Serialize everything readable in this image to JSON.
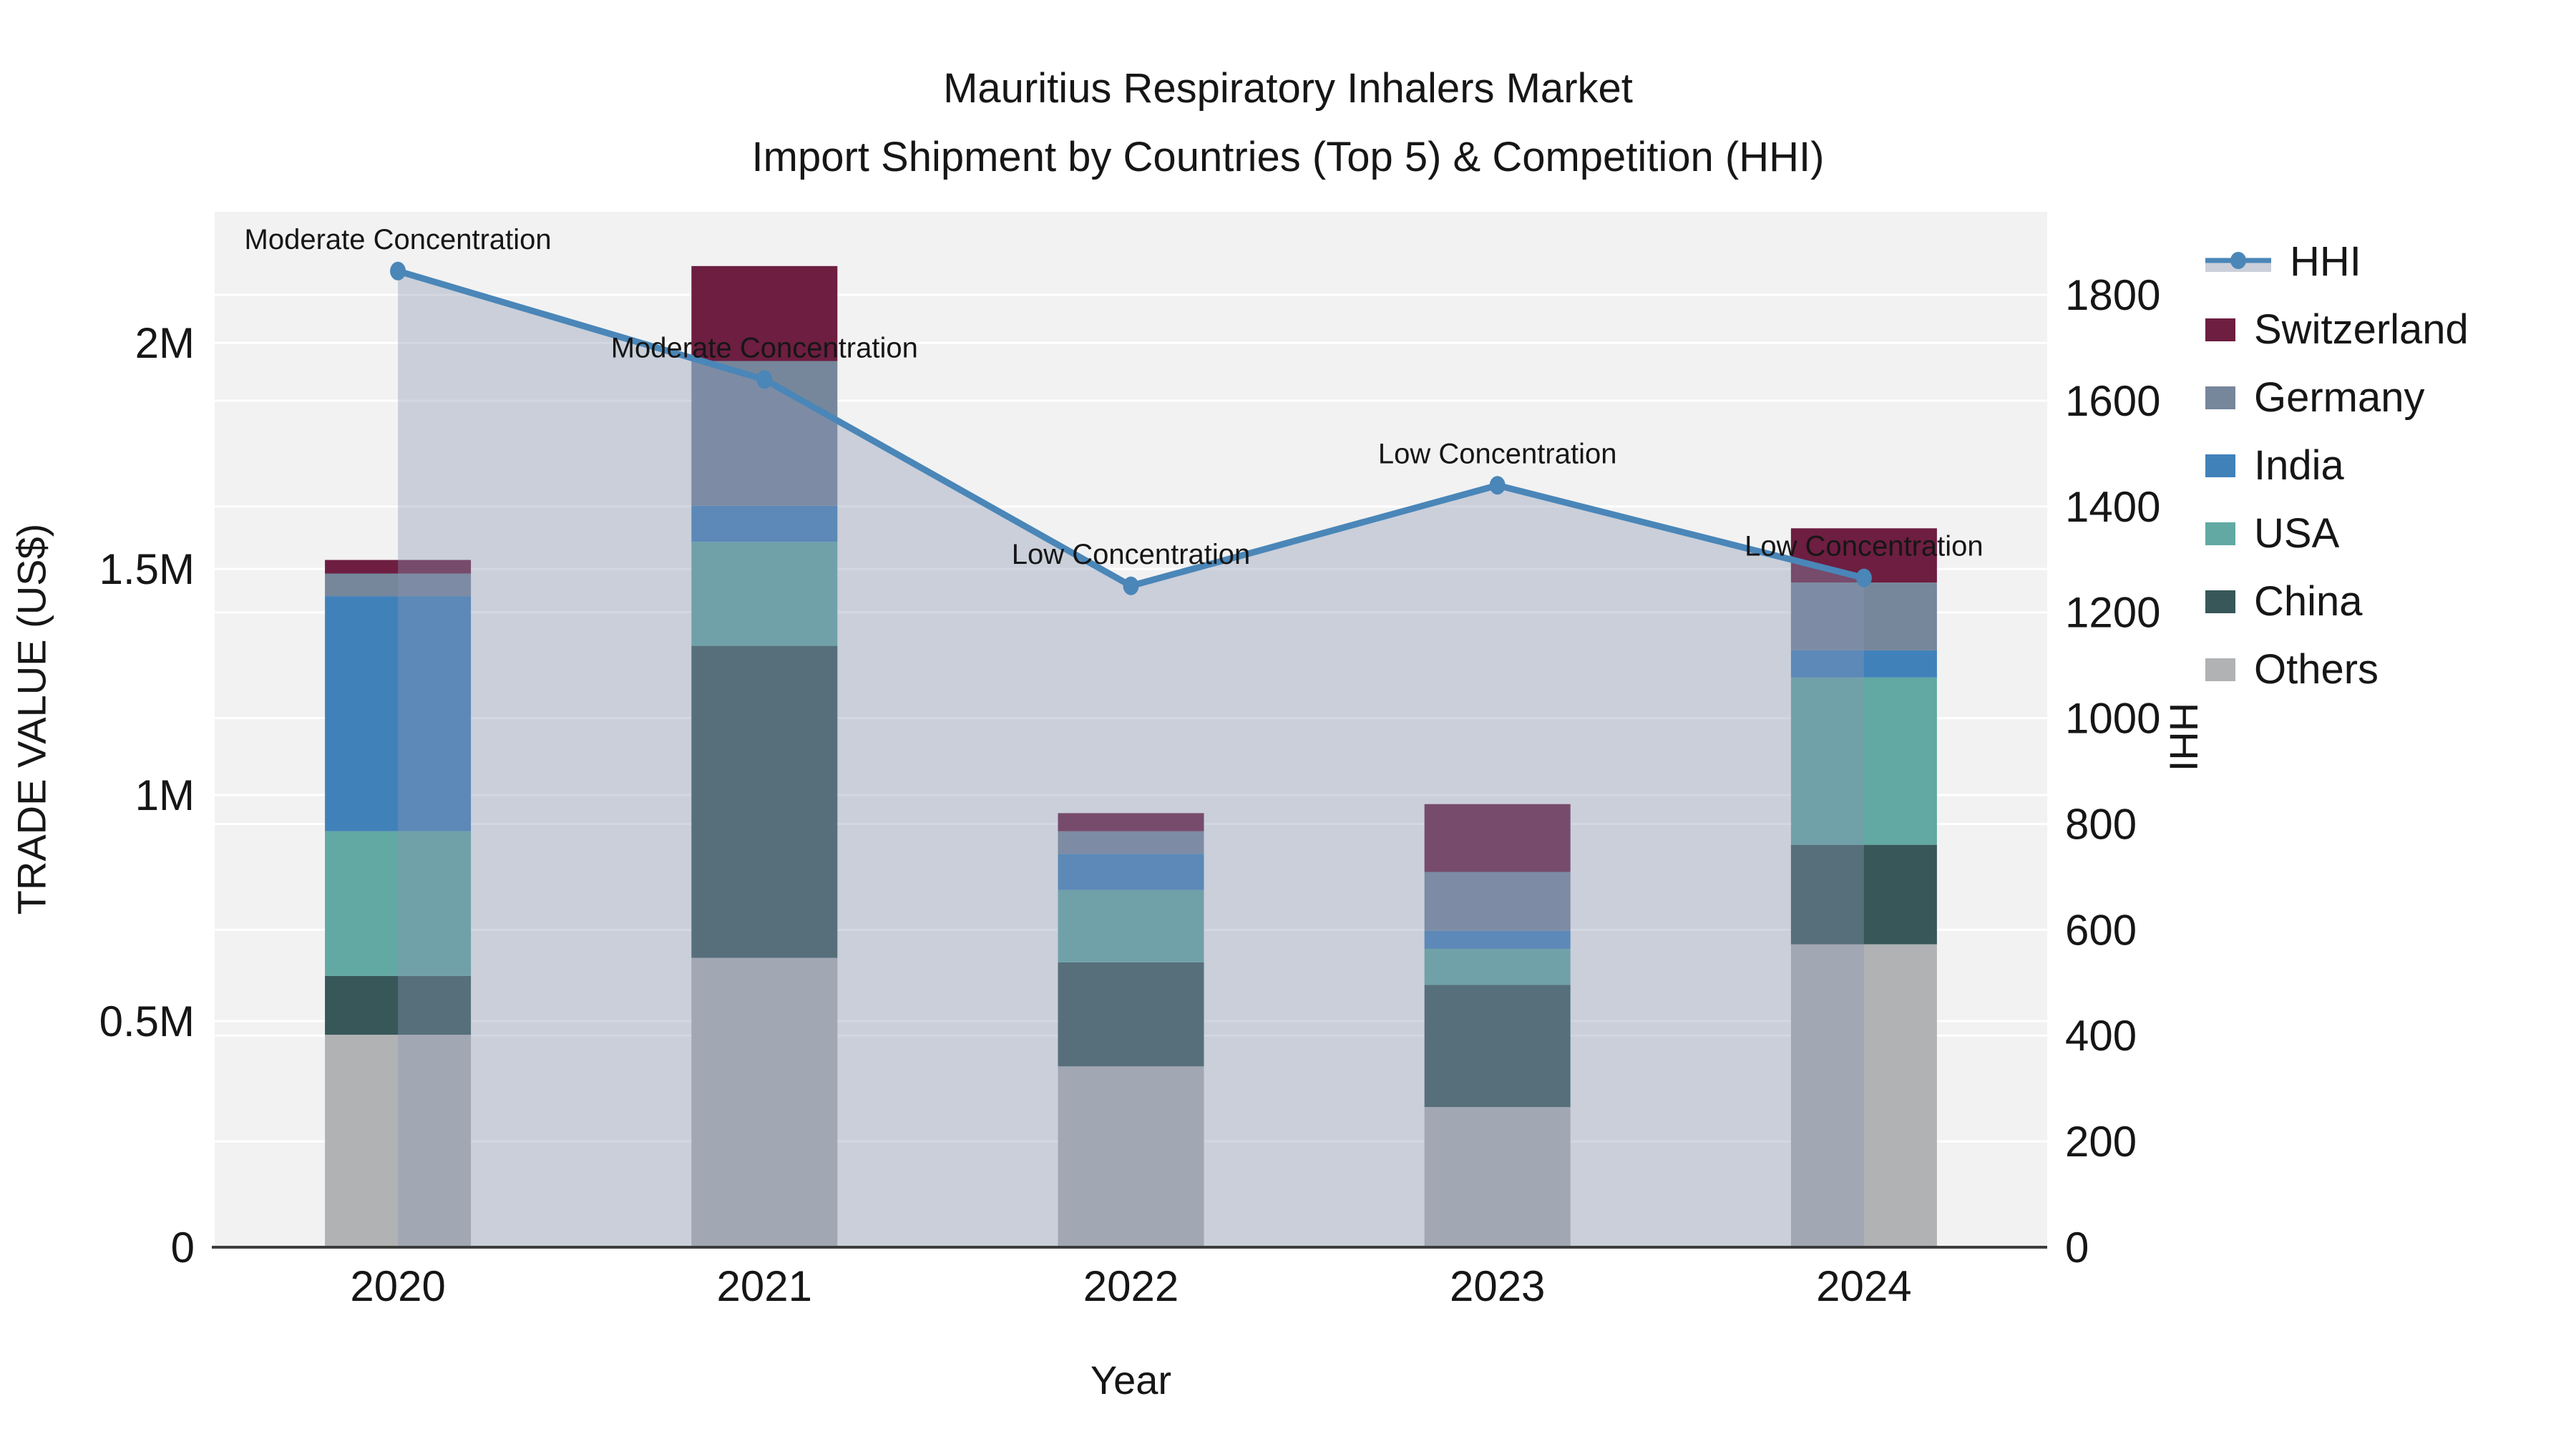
{
  "title": {
    "line1": "Mauritius Respiratory Inhalers Market",
    "line2": "Import Shipment by Countries (Top 5) & Competition (HHI)"
  },
  "axes": {
    "x_title": "Year",
    "y_left_title": "TRADE VALUE (US$)",
    "y_right_title": "HHI",
    "y_left_ticks": [
      {
        "label": "0",
        "value": 0
      },
      {
        "label": "0.5M",
        "value": 0.5
      },
      {
        "label": "1M",
        "value": 1
      },
      {
        "label": "1.5M",
        "value": 1.5
      },
      {
        "label": "2M",
        "value": 2
      }
    ],
    "y_right_ticks": [
      0,
      200,
      400,
      600,
      800,
      1000,
      1200,
      1400,
      1600,
      1800
    ]
  },
  "chart_data": {
    "type": "bar",
    "subtype": "stacked-bars-with-line-overlay",
    "title": "Mauritius Respiratory Inhalers Market — Import Shipment by Countries (Top 5) & Competition (HHI)",
    "xlabel": "Year",
    "ylabel": "TRADE VALUE (US$)",
    "ylabel_right": "HHI",
    "categories": [
      "2020",
      "2021",
      "2022",
      "2023",
      "2024"
    ],
    "bar_value_unit": "million US$",
    "series": [
      {
        "name": "Others",
        "color": "#b0b2b4",
        "values": [
          0.47,
          0.64,
          0.4,
          0.31,
          0.67
        ]
      },
      {
        "name": "China",
        "color": "#375759",
        "values": [
          0.13,
          0.69,
          0.23,
          0.27,
          0.22
        ]
      },
      {
        "name": "USA",
        "color": "#62a8a3",
        "values": [
          0.32,
          0.23,
          0.16,
          0.08,
          0.37
        ]
      },
      {
        "name": "India",
        "color": "#4181ba",
        "values": [
          0.52,
          0.08,
          0.08,
          0.04,
          0.06
        ]
      },
      {
        "name": "Germany",
        "color": "#76879b",
        "values": [
          0.05,
          0.32,
          0.05,
          0.13,
          0.15
        ]
      },
      {
        "name": "Switzerland",
        "color": "#6d1e41",
        "values": [
          0.03,
          0.21,
          0.04,
          0.15,
          0.12
        ]
      }
    ],
    "bar_totals": [
      1.52,
      2.17,
      0.96,
      0.98,
      1.59
    ],
    "line": {
      "name": "HHI",
      "axis": "right",
      "color": "#4a86b8",
      "fill_color": "rgba(136,150,179,0.38)",
      "values": [
        1845,
        1640,
        1250,
        1440,
        1265
      ]
    },
    "annotations": [
      "Moderate Concentration",
      "Moderate Concentration",
      "Low Concentration",
      "Low Concentration",
      "Low Concentration"
    ],
    "left_axis_range": [
      0,
      2.29
    ],
    "right_axis_range": [
      0,
      1957
    ],
    "grid": true,
    "legend_position": "right"
  },
  "legend": {
    "items": [
      {
        "label": "HHI",
        "type": "line",
        "color": "#4a86b8",
        "fill": "#cacfda"
      },
      {
        "label": "Switzerland",
        "type": "swatch",
        "color": "#6d1e41"
      },
      {
        "label": "Germany",
        "type": "swatch",
        "color": "#76879b"
      },
      {
        "label": "India",
        "type": "swatch",
        "color": "#4181ba"
      },
      {
        "label": "USA",
        "type": "swatch",
        "color": "#62a8a3"
      },
      {
        "label": "China",
        "type": "swatch",
        "color": "#375759"
      },
      {
        "label": "Others",
        "type": "swatch",
        "color": "#b0b2b4"
      }
    ]
  },
  "colors": {
    "plot_background": "#f2f2f2",
    "grid_line": "#ffffff",
    "axis_line": "#3d3d3d",
    "text": "#161616",
    "hhi_line": "#4a86b8",
    "hhi_area_fill": "rgba(136,150,179,0.38)"
  }
}
